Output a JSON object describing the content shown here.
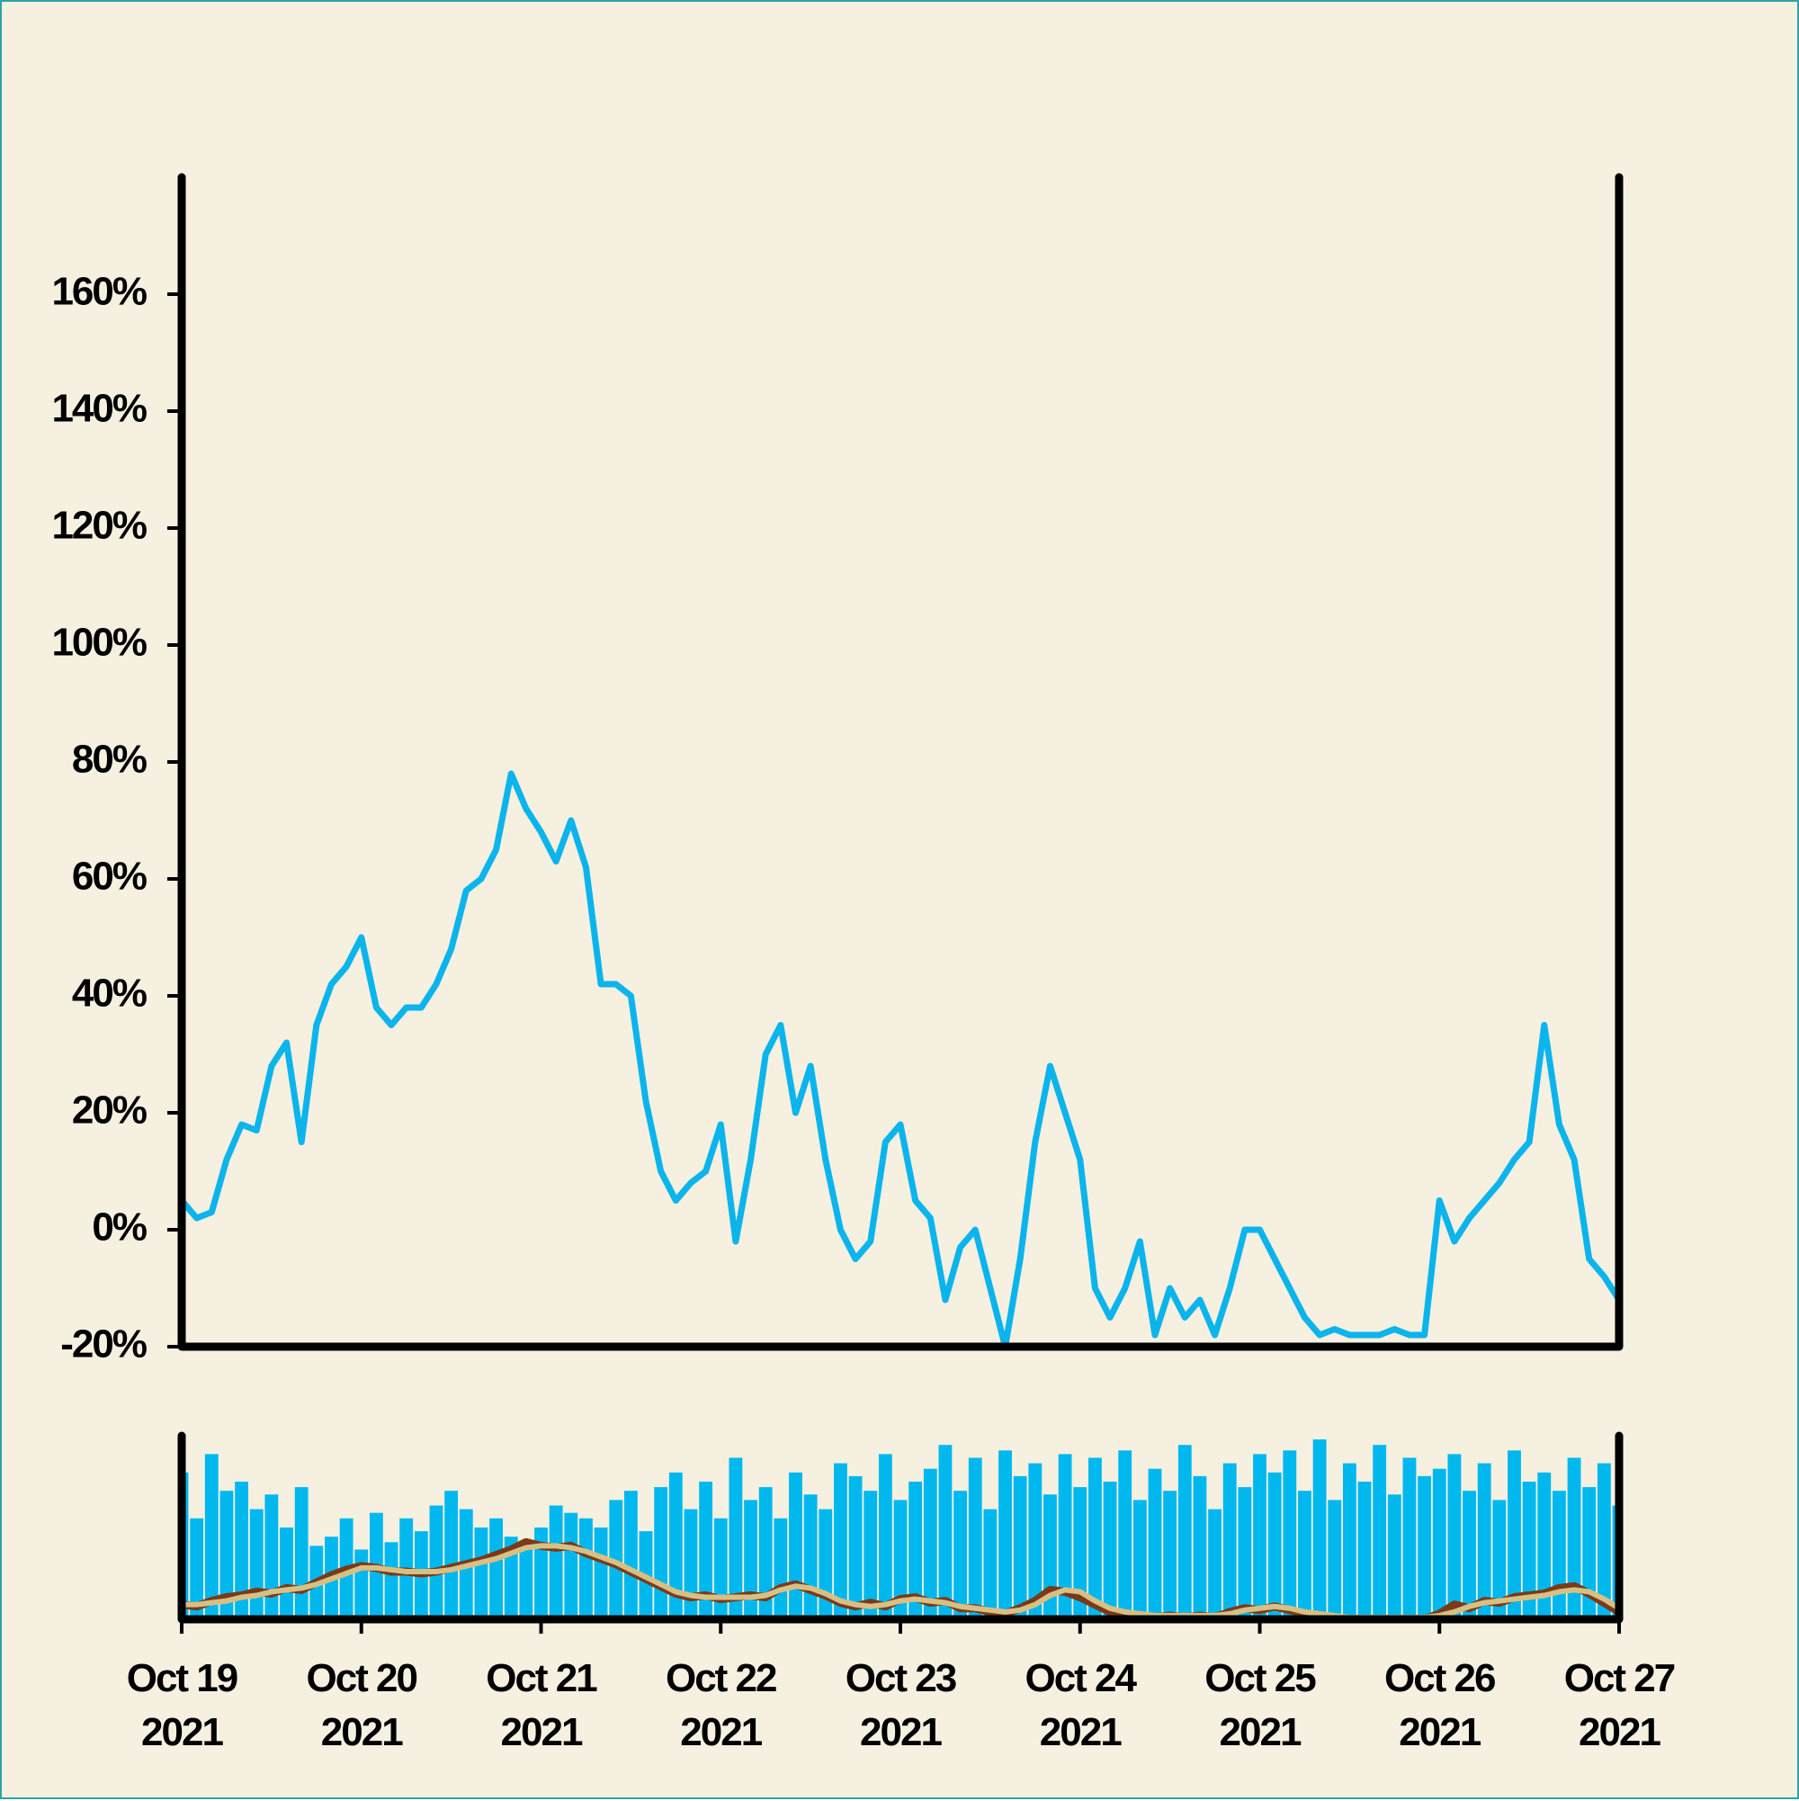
{
  "chart_data": [
    {
      "type": "line",
      "x": [
        0,
        2,
        4,
        6,
        8,
        10,
        12,
        14,
        16,
        18,
        20,
        22,
        24,
        26,
        28,
        30,
        32,
        34,
        36,
        38,
        40,
        42,
        44,
        46,
        48,
        50,
        52,
        54,
        56,
        58,
        60,
        62,
        64,
        66,
        68,
        70,
        72,
        74,
        76,
        78,
        80,
        82,
        84,
        86,
        88,
        90,
        92,
        94,
        96,
        98,
        100,
        102,
        104,
        106,
        108,
        110,
        112,
        114,
        116,
        118,
        120,
        122,
        124,
        126,
        128,
        130,
        132,
        134,
        136,
        138,
        140,
        142,
        144,
        146,
        148,
        150,
        152,
        154,
        156,
        158,
        160,
        162,
        164,
        166,
        168,
        170,
        172,
        174,
        176,
        178,
        180,
        182,
        184,
        186,
        188,
        190,
        192
      ],
      "series": [
        {
          "color": "#0cb4ec",
          "values": [
            5,
            2,
            3,
            12,
            18,
            17,
            28,
            32,
            15,
            35,
            42,
            45,
            50,
            38,
            35,
            38,
            38,
            42,
            48,
            58,
            60,
            65,
            78,
            72,
            68,
            63,
            70,
            62,
            42,
            42,
            40,
            22,
            10,
            5,
            8,
            10,
            18,
            -2,
            12,
            30,
            35,
            20,
            28,
            12,
            0,
            -5,
            -2,
            15,
            18,
            5,
            2,
            -12,
            -3,
            0,
            -10,
            -20,
            -5,
            15,
            28,
            20,
            12,
            -10,
            -15,
            -10,
            -2,
            -18,
            -10,
            -15,
            -12,
            -18,
            -10,
            0,
            0,
            -5,
            -10,
            -15,
            -18,
            -17,
            -18,
            -18,
            -18,
            -17,
            -18,
            -18,
            5,
            -2,
            2,
            5,
            8,
            12,
            15,
            35,
            18,
            12,
            -5,
            -8,
            -12
          ]
        }
      ],
      "xlim": [
        0,
        192
      ],
      "ylim": [
        -20,
        180
      ],
      "yticks": [
        {
          "value": -20,
          "label": "-20%"
        },
        {
          "value": 0,
          "label": "0%"
        },
        {
          "value": 20,
          "label": "20%"
        },
        {
          "value": 40,
          "label": "40%"
        },
        {
          "value": 60,
          "label": "60%"
        },
        {
          "value": 80,
          "label": "80%"
        },
        {
          "value": 100,
          "label": "100%"
        },
        {
          "value": 120,
          "label": "120%"
        },
        {
          "value": 140,
          "label": "140%"
        },
        {
          "value": 160,
          "label": "160%"
        }
      ]
    },
    {
      "type": "bar",
      "x": [
        0,
        2,
        4,
        6,
        8,
        10,
        12,
        14,
        16,
        18,
        20,
        22,
        24,
        26,
        28,
        30,
        32,
        34,
        36,
        38,
        40,
        42,
        44,
        46,
        48,
        50,
        52,
        54,
        56,
        58,
        60,
        62,
        64,
        66,
        68,
        70,
        72,
        74,
        76,
        78,
        80,
        82,
        84,
        86,
        88,
        90,
        92,
        94,
        96,
        98,
        100,
        102,
        104,
        106,
        108,
        110,
        112,
        114,
        116,
        118,
        120,
        122,
        124,
        126,
        128,
        130,
        132,
        134,
        136,
        138,
        140,
        142,
        144,
        146,
        148,
        150,
        152,
        154,
        156,
        158,
        160,
        162,
        164,
        166,
        168,
        170,
        172,
        174,
        176,
        178,
        180,
        182,
        184,
        186,
        188,
        190,
        192
      ],
      "series": [
        {
          "type": "bar",
          "color": "#00b8ee",
          "values": [
            80,
            55,
            90,
            70,
            75,
            60,
            68,
            50,
            72,
            40,
            45,
            55,
            38,
            58,
            42,
            55,
            48,
            62,
            70,
            60,
            50,
            55,
            45,
            40,
            50,
            62,
            58,
            55,
            50,
            65,
            70,
            48,
            72,
            80,
            60,
            75,
            55,
            88,
            65,
            72,
            55,
            80,
            68,
            60,
            85,
            78,
            70,
            90,
            65,
            75,
            82,
            95,
            70,
            88,
            60,
            92,
            78,
            85,
            68,
            90,
            72,
            88,
            75,
            92,
            65,
            82,
            70,
            95,
            78,
            60,
            85,
            72,
            90,
            80,
            92,
            70,
            98,
            65,
            85,
            75,
            95,
            68,
            88,
            78,
            82,
            90,
            70,
            85,
            65,
            92,
            75,
            80,
            70,
            88,
            72,
            85,
            62
          ]
        },
        {
          "type": "line",
          "color": "#7a3a1a",
          "values": [
            8,
            7,
            10,
            12,
            13,
            15,
            14,
            17,
            16,
            20,
            24,
            27,
            29,
            28,
            26,
            26,
            25,
            26,
            28,
            30,
            32,
            35,
            38,
            42,
            40,
            39,
            40,
            36,
            33,
            30,
            26,
            22,
            18,
            14,
            12,
            13,
            11,
            12,
            13,
            12,
            17,
            19,
            16,
            13,
            9,
            7,
            9,
            7,
            11,
            12,
            9,
            10,
            6,
            6,
            4,
            3,
            6,
            10,
            16,
            15,
            12,
            8,
            4,
            3,
            2,
            1,
            2,
            1,
            2,
            1,
            4,
            6,
            5,
            7,
            5,
            3,
            2,
            1,
            0,
            0,
            0,
            0,
            0,
            0,
            3,
            8,
            6,
            10,
            9,
            12,
            13,
            14,
            17,
            18,
            14,
            9,
            4
          ]
        },
        {
          "type": "line",
          "color": "#d9bf82",
          "values": [
            8,
            8,
            9,
            10,
            12,
            13,
            15,
            16,
            17,
            19,
            22,
            25,
            28,
            28,
            27,
            26,
            26,
            26,
            27,
            29,
            31,
            33,
            36,
            39,
            40,
            40,
            39,
            37,
            34,
            31,
            27,
            23,
            19,
            15,
            13,
            12,
            12,
            12,
            12,
            13,
            16,
            18,
            17,
            14,
            10,
            8,
            7,
            8,
            10,
            11,
            10,
            9,
            7,
            6,
            5,
            4,
            5,
            8,
            13,
            16,
            15,
            10,
            6,
            4,
            3,
            2,
            2,
            2,
            2,
            2,
            3,
            5,
            6,
            7,
            6,
            4,
            3,
            2,
            1,
            1,
            1,
            1,
            1,
            1,
            2,
            4,
            7,
            9,
            10,
            11,
            12,
            13,
            15,
            16,
            15,
            11,
            6
          ]
        }
      ],
      "xlim": [
        0,
        192
      ],
      "ylim": [
        0,
        100
      ],
      "xticks": [
        {
          "value": 0,
          "label": "Oct 19\n2021"
        },
        {
          "value": 24,
          "label": "Oct 20\n2021"
        },
        {
          "value": 48,
          "label": "Oct 21\n2021"
        },
        {
          "value": 72,
          "label": "Oct 22\n2021"
        },
        {
          "value": 96,
          "label": "Oct 23\n2021"
        },
        {
          "value": 120,
          "label": "Oct 24\n2021"
        },
        {
          "value": 144,
          "label": "Oct 25\n2021"
        },
        {
          "value": 168,
          "label": "Oct 26\n2021"
        },
        {
          "value": 192,
          "label": "Oct 27\n2021"
        }
      ]
    }
  ]
}
